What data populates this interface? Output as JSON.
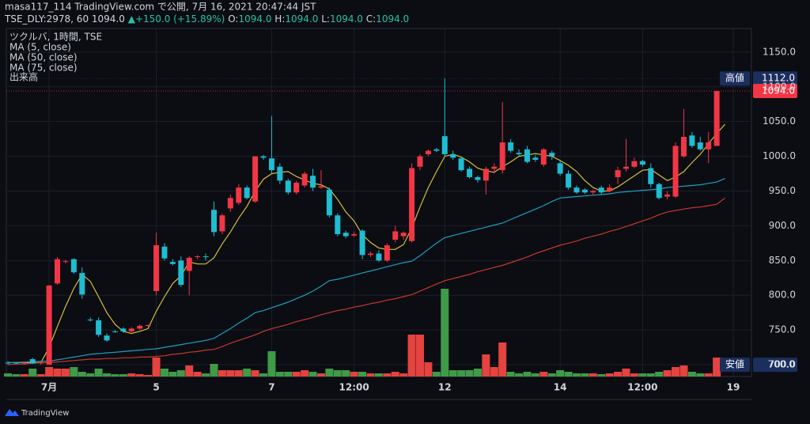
{
  "header": {
    "line1": "masa117_114 TradingView.com で公開, 7月 16, 2021 20:47:44 JST",
    "symbol": "TSE_DLY:2978, 60",
    "price": "1094.0",
    "change": "▲+150.0 (+15.89%)",
    "o_label": "O:",
    "o": "1094.0",
    "h_label": "H:",
    "h": "1094.0",
    "l_label": "L:",
    "l": "1094.0",
    "c_label": "C:",
    "c": "1094.0"
  },
  "footer": {
    "logo": "TradingView"
  },
  "chart_data": {
    "type": "candlestick",
    "title": "ツクルバ, 1時間, TSE",
    "categories": [
      null,
      null,
      null,
      null,
      null,
      "7月",
      null,
      null,
      null,
      null,
      null,
      null,
      null,
      null,
      null,
      null,
      null,
      null,
      "5",
      null,
      null,
      null,
      null,
      null,
      null,
      null,
      null,
      null,
      null,
      null,
      null,
      null,
      "7",
      null,
      null,
      null,
      null,
      null,
      null,
      null,
      null,
      null,
      "12:00",
      null,
      null,
      null,
      null,
      null,
      null,
      null,
      null,
      null,
      null,
      "12",
      null,
      null,
      null,
      null,
      null,
      null,
      null,
      null,
      null,
      null,
      null,
      null,
      null,
      "14",
      null,
      null,
      null,
      null,
      null,
      null,
      null,
      null,
      null,
      "12:00",
      null,
      null,
      null,
      null,
      null,
      null,
      null,
      null,
      null,
      null,
      "19"
    ],
    "open": [
      703,
      703,
      702,
      708,
      702,
      700,
      817,
      848,
      852,
      832,
      765,
      764,
      742,
      748,
      752,
      748,
      752,
      756,
      806,
      870,
      848,
      850,
      835,
      855,
      856,
      923,
      892,
      925,
      933,
      955,
      935,
      1000,
      997,
      985,
      965,
      948,
      958,
      972,
      955,
      952,
      915,
      890,
      886,
      893,
      858,
      860,
      850,
      880,
      885,
      878,
      985,
      1003,
      1010,
      1029,
      1003,
      997,
      982,
      970,
      965,
      982,
      980,
      1020,
      1005,
      1010,
      998,
      988,
      1005,
      990,
      975,
      955,
      952,
      948,
      955,
      950,
      970,
      982,
      985,
      993,
      983,
      960,
      942,
      942,
      1000,
      1030,
      1020,
      1010,
      1015,
      null,
      null
    ],
    "high": [
      705,
      704,
      704,
      710,
      704,
      815,
      855,
      851,
      853,
      840,
      768,
      768,
      745,
      750,
      754,
      754,
      758,
      758,
      890,
      875,
      852,
      856,
      856,
      858,
      860,
      935,
      918,
      945,
      960,
      958,
      1000,
      1002,
      1058,
      990,
      968,
      965,
      978,
      982,
      980,
      955,
      918,
      893,
      892,
      895,
      863,
      865,
      875,
      900,
      892,
      990,
      1003,
      1010,
      1012,
      1112,
      1008,
      1000,
      985,
      972,
      985,
      990,
      1078,
      1025,
      1010,
      1015,
      1002,
      1012,
      1008,
      995,
      980,
      958,
      954,
      952,
      958,
      960,
      985,
      1025,
      998,
      995,
      990,
      962,
      950,
      1020,
      1068,
      1035,
      1028,
      1035,
      1094,
      null,
      null
    ],
    "low": [
      700,
      701,
      700,
      701,
      700,
      700,
      815,
      846,
      831,
      795,
      762,
      740,
      733,
      746,
      746,
      747,
      750,
      755,
      800,
      850,
      843,
      812,
      800,
      852,
      850,
      885,
      888,
      920,
      930,
      938,
      933,
      995,
      975,
      960,
      945,
      945,
      955,
      950,
      953,
      912,
      885,
      882,
      884,
      852,
      855,
      848,
      848,
      876,
      880,
      876,
      980,
      1000,
      1006,
      1000,
      995,
      978,
      968,
      962,
      945,
      975,
      975,
      1005,
      1000,
      990,
      992,
      985,
      995,
      972,
      952,
      946,
      946,
      944,
      945,
      948,
      960,
      978,
      983,
      985,
      955,
      938,
      938,
      940,
      998,
      1012,
      1008,
      990,
      1015,
      null,
      null
    ],
    "close": [
      703,
      702,
      703,
      702,
      703,
      814,
      852,
      849,
      833,
      801,
      764,
      743,
      735,
      748,
      748,
      752,
      756,
      757,
      872,
      853,
      845,
      815,
      854,
      856,
      855,
      891,
      915,
      940,
      955,
      940,
      1000,
      998,
      980,
      965,
      948,
      962,
      975,
      955,
      957,
      915,
      888,
      885,
      888,
      858,
      860,
      850,
      872,
      892,
      890,
      983,
      1000,
      1008,
      1008,
      1003,
      998,
      980,
      970,
      966,
      982,
      985,
      1020,
      1008,
      1003,
      992,
      995,
      1010,
      1000,
      975,
      955,
      948,
      948,
      950,
      948,
      955,
      980,
      985,
      993,
      988,
      960,
      940,
      945,
      1015,
      1028,
      1015,
      1010,
      1020,
      1094,
      null,
      null
    ],
    "up_color": "#f23645",
    "down_color": "#1fbcd2",
    "series": [
      {
        "name": "MA (5, close)",
        "color": "#d4bf3a",
        "values": [
          703,
          703,
          703,
          703,
          703,
          725,
          755,
          784,
          810,
          830,
          820,
          798,
          775,
          758,
          748,
          745,
          748,
          752,
          777,
          798,
          817,
          828,
          848,
          845,
          845,
          854,
          874,
          891,
          911,
          928,
          950,
          967,
          975,
          977,
          978,
          971,
          966,
          961,
          959,
          953,
          938,
          920,
          907,
          887,
          876,
          868,
          866,
          866,
          873,
          897,
          927,
          955,
          978,
          1000,
          1003,
          999,
          992,
          983,
          979,
          977,
          985,
          992,
          1000,
          1002,
          1004,
          1002,
          1000,
          994,
          987,
          978,
          965,
          955,
          950,
          950,
          956,
          964,
          972,
          980,
          981,
          973,
          965,
          970,
          978,
          991,
          1003,
          1018,
          1033,
          1046,
          null
        ]
      },
      {
        "name": "MA (50, close)",
        "color": "#1f9ec0",
        "values": [
          703,
          703,
          704,
          704,
          705,
          705,
          707,
          709,
          711,
          713,
          715,
          716,
          717,
          718,
          719,
          720,
          721,
          722,
          723,
          725,
          727,
          729,
          731,
          733,
          735,
          738,
          745,
          752,
          760,
          767,
          775,
          778,
          782,
          786,
          790,
          795,
          800,
          806,
          813,
          821,
          823,
          826,
          829,
          832,
          835,
          838,
          841,
          844,
          847,
          849,
          857,
          866,
          875,
          883,
          886,
          889,
          892,
          895,
          898,
          901,
          904,
          909,
          914,
          919,
          924,
          929,
          935,
          940,
          941,
          942,
          943,
          944,
          945,
          946,
          948,
          949,
          950,
          951,
          952,
          953,
          955,
          956,
          957,
          958,
          959,
          961,
          963,
          968,
          null
        ]
      },
      {
        "name": "MA (75, close)",
        "color": "#c8372d",
        "values": [
          700,
          701,
          701,
          702,
          703,
          703,
          704,
          705,
          706,
          707,
          708,
          708,
          709,
          709,
          710,
          710,
          711,
          711,
          712,
          713,
          715,
          716,
          718,
          719,
          721,
          722,
          726,
          731,
          735,
          739,
          743,
          748,
          752,
          755,
          758,
          762,
          765,
          768,
          772,
          775,
          778,
          780,
          783,
          785,
          788,
          790,
          793,
          795,
          798,
          801,
          806,
          811,
          816,
          821,
          824,
          827,
          830,
          834,
          837,
          840,
          843,
          847,
          851,
          855,
          860,
          864,
          868,
          872,
          875,
          878,
          882,
          885,
          888,
          892,
          895,
          899,
          903,
          907,
          911,
          916,
          920,
          922,
          924,
          926,
          927,
          929,
          931,
          940,
          null
        ]
      }
    ],
    "volume": {
      "name": "出来高",
      "up_color": "#e5433f",
      "down_color": "#3f9b48",
      "ylim": [
        0,
        440
      ],
      "values": [
        4,
        3,
        3,
        10,
        3,
        12,
        10,
        10,
        12,
        6,
        4,
        10,
        4,
        3,
        3,
        4,
        3,
        2,
        24,
        10,
        6,
        8,
        14,
        6,
        4,
        16,
        8,
        8,
        8,
        10,
        8,
        4,
        32,
        6,
        6,
        6,
        8,
        6,
        4,
        10,
        8,
        8,
        6,
        6,
        4,
        4,
        4,
        6,
        4,
        53,
        53,
        18,
        6,
        111,
        8,
        8,
        8,
        10,
        28,
        12,
        43,
        6,
        4,
        6,
        4,
        6,
        4,
        8,
        6,
        4,
        4,
        4,
        3,
        4,
        6,
        10,
        4,
        4,
        4,
        6,
        8,
        12,
        14,
        6,
        4,
        4,
        24,
        null,
        null
      ]
    },
    "ylim": [
      683,
      1184
    ],
    "yticks": [
      {
        "value": 700,
        "label": "700.0"
      },
      {
        "value": 750,
        "label": "750.0"
      },
      {
        "value": 800,
        "label": "800.0"
      },
      {
        "value": 850,
        "label": "850.0"
      },
      {
        "value": 900,
        "label": "900.0"
      },
      {
        "value": 950,
        "label": "950.0"
      },
      {
        "value": 1000,
        "label": "1000.0"
      },
      {
        "value": 1050,
        "label": "1050.0"
      },
      {
        "value": 1100,
        "label": "1100.0"
      },
      {
        "value": 1150,
        "label": "1150.0"
      }
    ],
    "grid": true,
    "high_marker": {
      "name": "高値",
      "value": 1112,
      "label": "1112.0"
    },
    "last_marker": {
      "value": 1094,
      "label": "1094.0"
    },
    "low_marker": {
      "name": "安値",
      "value": 700,
      "label": "700.0"
    }
  }
}
